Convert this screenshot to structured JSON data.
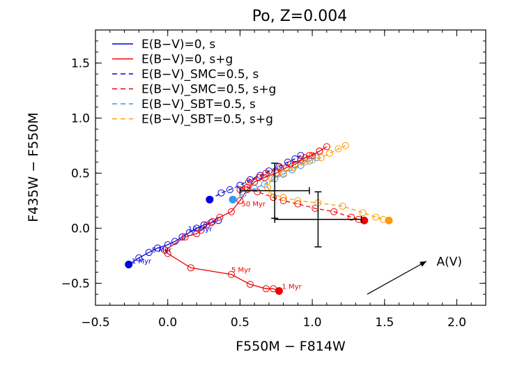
{
  "chart_data": {
    "type": "scatter",
    "title": "Po, Z=0.004",
    "xlabel": "F550M − F814W",
    "ylabel": "F435W − F550M",
    "xlim": [
      -0.5,
      2.2
    ],
    "ylim": [
      -0.7,
      1.8
    ],
    "x_ticks": [
      -0.5,
      0.0,
      0.5,
      1.0,
      1.5,
      2.0
    ],
    "x_tick_labels": [
      "−0.5",
      "0.0",
      "0.5",
      "1.0",
      "1.5",
      "2.0"
    ],
    "y_ticks": [
      -0.5,
      0.0,
      0.5,
      1.0,
      1.5
    ],
    "y_tick_labels": [
      "−0.5",
      "0.0",
      "0.5",
      "1.0",
      "1.5"
    ],
    "grid": false,
    "legend_position": "top-left",
    "series": [
      {
        "name": "E(B−V)=0, s",
        "color": "#0000dd",
        "style": "solid",
        "start": [
          -0.27,
          -0.33
        ],
        "x": [
          -0.27,
          -0.2,
          -0.13,
          -0.07,
          0.0,
          0.05,
          0.1,
          0.15,
          0.2,
          0.25,
          0.3,
          0.35
        ],
        "y": [
          -0.33,
          -0.27,
          -0.22,
          -0.18,
          -0.15,
          -0.12,
          -0.08,
          -0.04,
          0.0,
          0.03,
          0.05,
          0.07
        ]
      },
      {
        "name": "E(B−V)=0, s+g",
        "color": "#ee0000",
        "style": "solid",
        "start": [
          0.77,
          -0.57
        ],
        "x": [
          0.77,
          0.73,
          0.68,
          0.57,
          0.44,
          0.16,
          0.0,
          -0.02,
          0.12,
          0.2,
          0.23,
          0.27,
          0.31,
          0.36,
          0.44,
          0.5,
          0.55,
          0.6,
          0.67,
          0.75,
          0.82,
          0.88,
          0.95,
          1.0,
          1.05,
          1.1
        ],
        "y": [
          -0.57,
          -0.55,
          -0.55,
          -0.51,
          -0.42,
          -0.36,
          -0.23,
          -0.2,
          -0.08,
          -0.05,
          -0.02,
          0.03,
          0.06,
          0.1,
          0.15,
          0.25,
          0.35,
          0.42,
          0.46,
          0.5,
          0.55,
          0.58,
          0.64,
          0.66,
          0.7,
          0.74
        ]
      },
      {
        "name": "E(B−V)_SMC=0.5, s",
        "color": "#0000dd",
        "style": "dashed",
        "start": [
          0.29,
          0.26
        ],
        "x": [
          0.29,
          0.37,
          0.43,
          0.5,
          0.57,
          0.64,
          0.7,
          0.77,
          0.83,
          0.88,
          0.92
        ],
        "y": [
          0.26,
          0.32,
          0.35,
          0.39,
          0.44,
          0.48,
          0.52,
          0.56,
          0.6,
          0.63,
          0.66
        ]
      },
      {
        "name": "E(B−V)_SMC=0.5, s+g",
        "color": "#ee0000",
        "style": "dashed",
        "start": [
          1.36,
          0.07
        ],
        "x": [
          1.36,
          1.32,
          1.27,
          1.15,
          1.02,
          0.9,
          0.8,
          0.73,
          0.62,
          0.55,
          0.5,
          0.56,
          0.63,
          0.68,
          0.78,
          0.85,
          0.92,
          0.98,
          1.05
        ],
        "y": [
          0.07,
          0.08,
          0.1,
          0.15,
          0.18,
          0.22,
          0.25,
          0.28,
          0.33,
          0.37,
          0.35,
          0.42,
          0.46,
          0.5,
          0.55,
          0.58,
          0.62,
          0.66,
          0.7
        ]
      },
      {
        "name": "E(B−V)_SBT=0.5, s",
        "color": "#3399ee",
        "style": "dashed",
        "start": [
          0.45,
          0.26
        ],
        "x": [
          0.45,
          0.52,
          0.6,
          0.67,
          0.74,
          0.8,
          0.86,
          0.92,
          0.98,
          1.03
        ],
        "y": [
          0.26,
          0.31,
          0.36,
          0.4,
          0.45,
          0.49,
          0.53,
          0.57,
          0.61,
          0.64
        ]
      },
      {
        "name": "E(B−V)_SBT=0.5, s+g",
        "color": "#ff9900",
        "style": "dashed",
        "start": [
          1.53,
          0.07
        ],
        "x": [
          1.53,
          1.49,
          1.44,
          1.35,
          1.21,
          1.04,
          0.9,
          0.8,
          0.72,
          0.69,
          0.72,
          0.8,
          0.87,
          0.95,
          1.0,
          1.06,
          1.12,
          1.18,
          1.23
        ],
        "y": [
          0.07,
          0.08,
          0.1,
          0.14,
          0.2,
          0.23,
          0.25,
          0.28,
          0.31,
          0.37,
          0.45,
          0.5,
          0.55,
          0.6,
          0.62,
          0.64,
          0.68,
          0.72,
          0.75
        ]
      }
    ],
    "error_bars": [
      {
        "x": 0.74,
        "y": 0.34,
        "xerr": 0.24,
        "yerr": 0.25
      },
      {
        "x": 1.04,
        "y": 0.08,
        "xerr": 0.3,
        "yerr": 0.25
      }
    ],
    "annotations": [
      {
        "text": "1 Myr",
        "x": -0.25,
        "y": -0.32,
        "color": "#0000dd"
      },
      {
        "text": "5 Myr",
        "x": -0.11,
        "y": -0.22,
        "color": "#0000dd"
      },
      {
        "text": "10 Myr",
        "x": 0.14,
        "y": -0.03,
        "color": "#0000dd"
      },
      {
        "text": "1 Myr",
        "x": 0.79,
        "y": -0.55,
        "color": "#ee0000"
      },
      {
        "text": "5 Myr",
        "x": 0.44,
        "y": -0.4,
        "color": "#ee0000"
      },
      {
        "text": "50 Myr",
        "x": 0.51,
        "y": 0.2,
        "color": "#ee0000"
      },
      {
        "text": "A(V)",
        "x": 1.86,
        "y": -0.34,
        "color": "#000000"
      }
    ],
    "extinction_vector": {
      "x0": 1.38,
      "y0": -0.6,
      "x1": 1.79,
      "y1": -0.3,
      "label": "A(V)"
    }
  }
}
